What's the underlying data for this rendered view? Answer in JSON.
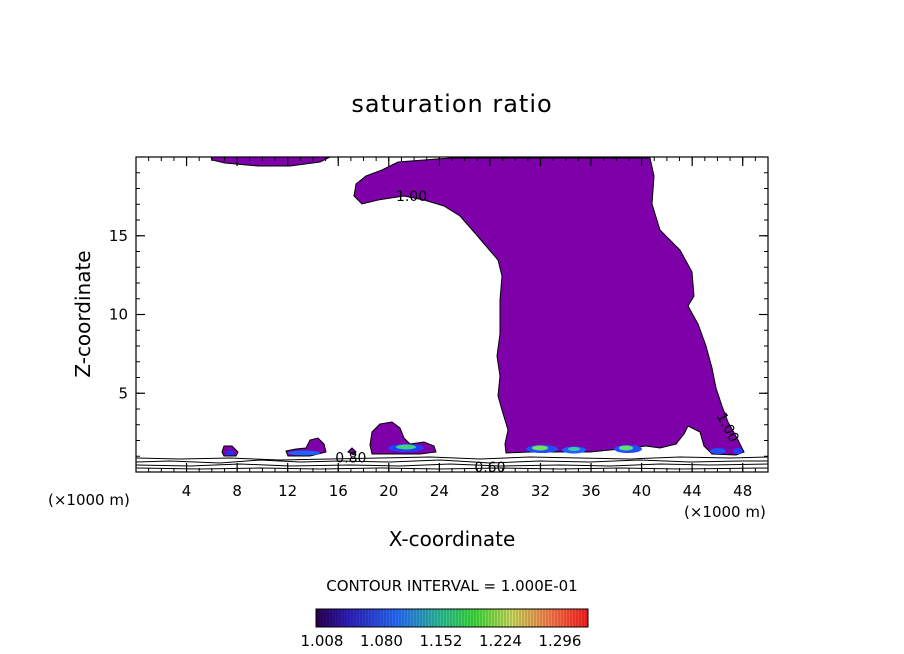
{
  "chart_data": {
    "type": "heatmap",
    "title": "saturation ratio",
    "xlabel": "X-coordinate",
    "ylabel": "Z-coordinate",
    "x_unit_left": "(×1000 m)",
    "x_unit_right": "(×1000 m)",
    "xlim": [
      0,
      50
    ],
    "ylim": [
      0,
      20
    ],
    "x_ticks": [
      4,
      8,
      12,
      16,
      20,
      24,
      28,
      32,
      36,
      40,
      44,
      48
    ],
    "y_ticks": [
      5,
      10,
      15
    ],
    "contour_labels": [
      {
        "text": "1.00",
        "x": 21.8,
        "y": 17.2
      },
      {
        "text": "0.80",
        "x": 17.0,
        "y": 0.6
      },
      {
        "text": "0.60",
        "x": 28.0,
        "y": 0.0
      },
      {
        "text": "1.00",
        "x": 46.5,
        "y": 2.7
      }
    ],
    "contour_interval_label": "CONTOUR INTERVAL = 1.000E-01",
    "colorbar_ticks": [
      "1.008",
      "1.080",
      "1.152",
      "1.224",
      "1.296"
    ],
    "colors": {
      "fill": "#7d00a8",
      "bar_low": "#3a0070",
      "bar_mid_blue": "#2030ff",
      "bar_green": "#30d060",
      "bar_high": "#ff3020"
    }
  }
}
